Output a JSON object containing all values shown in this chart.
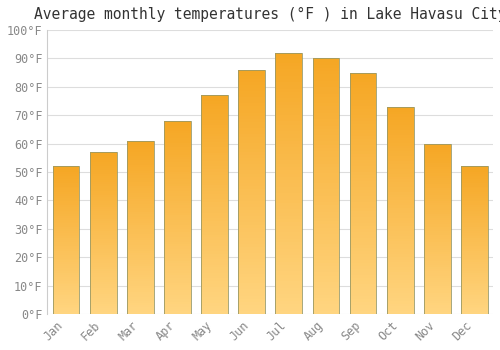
{
  "title": "Average monthly temperatures (°F ) in Lake Havasu City",
  "months": [
    "Jan",
    "Feb",
    "Mar",
    "Apr",
    "May",
    "Jun",
    "Jul",
    "Aug",
    "Sep",
    "Oct",
    "Nov",
    "Dec"
  ],
  "values": [
    52,
    57,
    61,
    68,
    77,
    86,
    92,
    90,
    85,
    73,
    60,
    52
  ],
  "bar_color_top": "#F5A623",
  "bar_color_bottom": "#FFD580",
  "bar_edge_color": "#B8860B",
  "ylim": [
    0,
    100
  ],
  "yticks": [
    0,
    10,
    20,
    30,
    40,
    50,
    60,
    70,
    80,
    90,
    100
  ],
  "ytick_labels": [
    "0°F",
    "10°F",
    "20°F",
    "30°F",
    "40°F",
    "50°F",
    "60°F",
    "70°F",
    "80°F",
    "90°F",
    "100°F"
  ],
  "background_color": "#ffffff",
  "grid_color": "#dddddd",
  "title_fontsize": 10.5,
  "tick_fontsize": 8.5,
  "tick_color": "#888888",
  "figsize": [
    5.0,
    3.5
  ],
  "dpi": 100
}
